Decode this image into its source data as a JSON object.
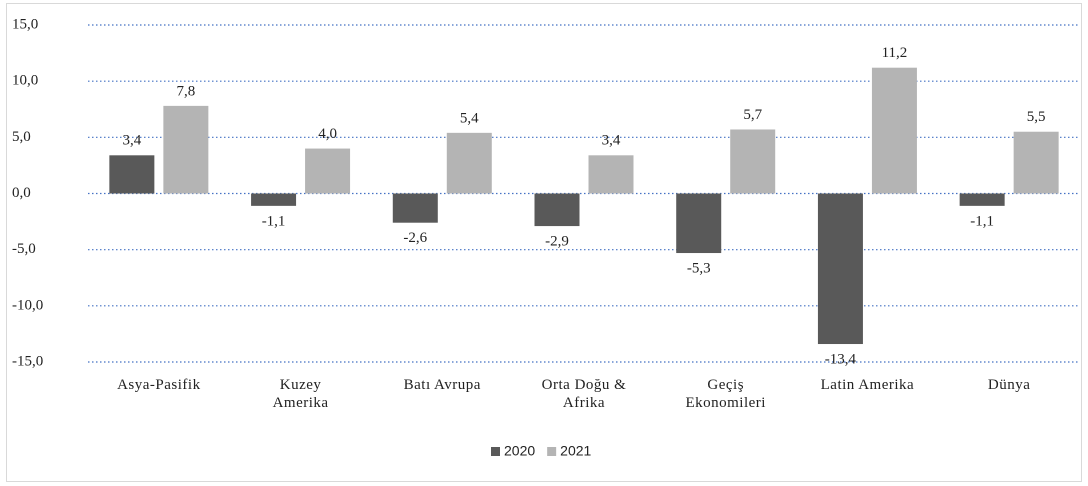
{
  "chart_data": {
    "type": "bar",
    "categories": [
      "Asya-Pasifik",
      "Kuzey\nAmerika",
      "Batı Avrupa",
      "Orta Doğu &\nAfrika",
      "Geçiş\nEkonomileri",
      "Latin Amerika",
      "Dünya"
    ],
    "series": [
      {
        "name": "2020",
        "color": "#595959",
        "values": [
          3.4,
          -1.1,
          -2.6,
          -2.9,
          -5.3,
          -13.4,
          -1.1
        ],
        "value_labels": [
          "3,4",
          "-1,1",
          "-2,6",
          "-2,9",
          "-5,3",
          "-13,4",
          "-1,1"
        ]
      },
      {
        "name": "2021",
        "color": "#b4b4b4",
        "values": [
          7.8,
          4.0,
          5.4,
          3.4,
          5.7,
          11.2,
          5.5
        ],
        "value_labels": [
          "7,8",
          "4,0",
          "5,4",
          "3,4",
          "5,7",
          "11,2",
          "5,5"
        ]
      }
    ],
    "ylim": [
      -15,
      15
    ],
    "yticks": [
      {
        "value": -15,
        "label": "-15,0"
      },
      {
        "value": -10,
        "label": "-10,0"
      },
      {
        "value": -5,
        "label": "-5,0"
      },
      {
        "value": 0,
        "label": "0,0"
      },
      {
        "value": 5,
        "label": "5,0"
      },
      {
        "value": 10,
        "label": "10,0"
      },
      {
        "value": 15,
        "label": "15,0"
      }
    ],
    "grid": true,
    "legend": "bottom"
  }
}
